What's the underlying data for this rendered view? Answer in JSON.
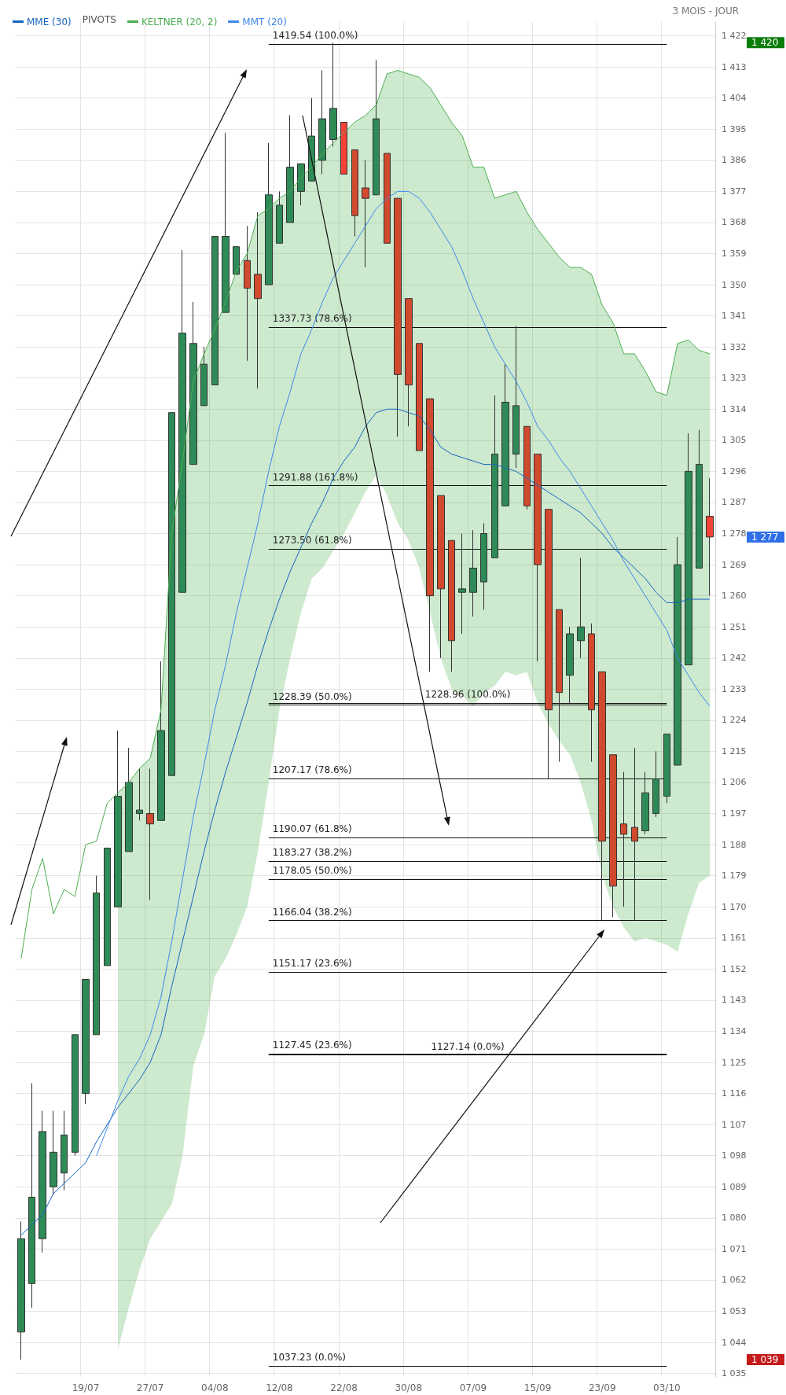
{
  "chart_data": {
    "type": "candlestick",
    "subtitle": "3 MOIS - JOUR",
    "categories": [
      null,
      null,
      null,
      null,
      null,
      null,
      "19/07",
      null,
      null,
      null,
      null,
      null,
      "27/07",
      null,
      null,
      null,
      null,
      null,
      "04/08",
      null,
      null,
      null,
      null,
      null,
      "12/08",
      null,
      null,
      null,
      null,
      null,
      "22/08",
      null,
      null,
      null,
      null,
      null,
      "30/08",
      null,
      null,
      null,
      null,
      null,
      "07/09",
      null,
      null,
      null,
      null,
      null,
      "15/09",
      null,
      null,
      null,
      null,
      null,
      "23/09",
      null,
      null,
      null,
      null,
      null,
      "03/10",
      null,
      null,
      null,
      null
    ],
    "ohlc": [
      [
        1047,
        1079,
        1039,
        1074
      ],
      [
        1061,
        1119,
        1054,
        1086
      ],
      [
        1074,
        1111,
        1070,
        1105
      ],
      [
        1089,
        1111,
        1087,
        1099
      ],
      [
        1093,
        1111,
        1088,
        1104
      ],
      [
        1099,
        1133,
        1098,
        1133
      ],
      [
        1116,
        1149,
        1113,
        1149
      ],
      [
        1133,
        1179,
        1133,
        1174
      ],
      [
        1153,
        1187,
        1153,
        1187
      ],
      [
        1170,
        1221,
        1170,
        1202
      ],
      [
        1186,
        1216,
        1186,
        1206
      ],
      [
        1197,
        1210,
        1195,
        1198
      ],
      [
        1197,
        1210,
        1172,
        1194
      ],
      [
        1195,
        1241,
        1195,
        1221
      ],
      [
        1208,
        1313,
        1208,
        1313
      ],
      [
        1261,
        1360,
        1261,
        1336
      ],
      [
        1298,
        1345,
        1298,
        1333
      ],
      [
        1315,
        1332,
        1315,
        1327
      ],
      [
        1321,
        1364,
        1321,
        1364
      ],
      [
        1342,
        1394,
        1342,
        1364
      ],
      [
        1353,
        1361,
        1353,
        1361
      ],
      [
        1357,
        1367,
        1328,
        1349
      ],
      [
        1353,
        1371,
        1320,
        1346
      ],
      [
        1350,
        1391,
        1350,
        1376
      ],
      [
        1362,
        1377,
        1362,
        1373
      ],
      [
        1368,
        1399,
        1368,
        1384
      ],
      [
        1377,
        1385,
        1373,
        1385
      ],
      [
        1380,
        1404,
        1380,
        1393
      ],
      [
        1386,
        1412,
        1382,
        1398
      ],
      [
        1392,
        1420,
        1390,
        1401
      ],
      [
        1397,
        1397,
        1382,
        1382
      ],
      [
        1389,
        1389,
        1364,
        1370
      ],
      [
        1378,
        1386,
        1355,
        1375
      ],
      [
        1376,
        1415,
        1376,
        1398
      ],
      [
        1388,
        1388,
        1362,
        1362
      ],
      [
        1375,
        1375,
        1306,
        1324
      ],
      [
        1346,
        1346,
        1309,
        1321
      ],
      [
        1333,
        1333,
        1302,
        1302
      ],
      [
        1317,
        1317,
        1238,
        1260
      ],
      [
        1289,
        1289,
        1242,
        1262
      ],
      [
        1276,
        1276,
        1238,
        1247
      ],
      [
        1261,
        1278,
        1249,
        1262
      ],
      [
        1261,
        1279,
        1254,
        1268
      ],
      [
        1264,
        1281,
        1256,
        1278
      ],
      [
        1271,
        1318,
        1271,
        1301
      ],
      [
        1286,
        1327,
        1286,
        1316
      ],
      [
        1301,
        1338,
        1297,
        1315
      ],
      [
        1309,
        1309,
        1285,
        1286
      ],
      [
        1301,
        1301,
        1241,
        1269
      ],
      [
        1285,
        1285,
        1207,
        1227
      ],
      [
        1256,
        1256,
        1212,
        1232
      ],
      [
        1237,
        1251,
        1229,
        1249
      ],
      [
        1247,
        1271,
        1242,
        1251
      ],
      [
        1249,
        1252,
        1212,
        1227
      ],
      [
        1238,
        1238,
        1166,
        1189
      ],
      [
        1214,
        1214,
        1167,
        1176
      ],
      [
        1194,
        1209,
        1170,
        1191
      ],
      [
        1193,
        1216,
        1166,
        1189
      ],
      [
        1192,
        1209,
        1191,
        1203
      ],
      [
        1197,
        1215,
        1196,
        1207
      ],
      [
        1202,
        1220,
        1200,
        1220
      ],
      [
        1211,
        1277,
        1211,
        1269
      ],
      [
        1240,
        1307,
        1240,
        1296
      ],
      [
        1268,
        1308,
        1268,
        1298
      ],
      [
        1283,
        1294,
        1260,
        1277
      ]
    ],
    "colors": [
      "#2e8b57",
      "#2e8b57",
      "#2e8b57",
      "#2e8b57",
      "#2e8b57",
      "#2e8b57",
      "#2e8b57",
      "#2e8b57",
      "#2e8b57",
      "#2e8b57",
      "#2e8b57",
      "#2e8b57",
      "#d24a2e",
      "#2e8b57",
      "#2e8b57",
      "#2e8b57",
      "#2e8b57",
      "#2e8b57",
      "#2e8b57",
      "#2e8b57",
      "#2e8b57",
      "#d24a2e",
      "#d24a2e",
      "#2e8b57",
      "#2e8b57",
      "#2e8b57",
      "#2e8b57",
      "#2e8b57",
      "#2e8b57",
      "#2e8b57",
      "#f44336",
      "#d24a2e",
      "#d24a2e",
      "#2e8b57",
      "#d24a2e",
      "#d24a2e",
      "#d24a2e",
      "#d24a2e",
      "#d24a2e",
      "#d24a2e",
      "#d24a2e",
      "#2e8b57",
      "#2e8b57",
      "#2e8b57",
      "#2e8b57",
      "#2e8b57",
      "#2e8b57",
      "#d24a2e",
      "#d24a2e",
      "#d24a2e",
      "#d24a2e",
      "#2e8b57",
      "#2e8b57",
      "#d24a2e",
      "#d24a2e",
      "#d24a2e",
      "#d24a2e",
      "#d24a2e",
      "#2e8b57",
      "#2e8b57",
      "#2e8b57",
      "#2e8b57",
      "#2e8b57",
      "#2e8b57",
      "#f44336"
    ],
    "series": [
      {
        "name": "MME (30)",
        "type": "line",
        "color": "#1565c0",
        "values": [
          1075,
          1078,
          1081,
          1087,
          1090,
          1093,
          1096,
          1102,
          1107,
          1112,
          1116,
          1120,
          1125,
          1133,
          1147,
          1160,
          1173,
          1186,
          1198,
          1209,
          1219,
          1229,
          1240,
          1250,
          1259,
          1267,
          1274,
          1281,
          1287,
          1294,
          1299,
          1303,
          1309,
          1313,
          1314,
          1314,
          1313,
          1312,
          1308,
          1303,
          1301,
          1300,
          1299,
          1298,
          1298,
          1297,
          1296,
          1294,
          1292,
          1290,
          1288,
          1286,
          1284,
          1281,
          1278,
          1274,
          1271,
          1268,
          1265,
          1261,
          1258,
          1258,
          1259,
          1259,
          1259
        ]
      },
      {
        "name": "KELTNER (20, 2)",
        "type": "line",
        "color": "#4caf50",
        "values": [
          1155,
          1175,
          1184,
          1168,
          1175,
          1173,
          1188,
          1189,
          1200,
          1203,
          1206,
          1210,
          1213,
          1227,
          1278,
          1299,
          1322,
          1330,
          1337,
          1345,
          1354,
          1359,
          1370,
          1372,
          1375,
          1377,
          1381,
          1384,
          1388,
          1391,
          1394,
          1397,
          1399,
          1402,
          1411,
          1412,
          1411,
          1410,
          1407,
          1402,
          1397,
          1393,
          1384,
          1384,
          1375,
          1376,
          1377,
          1371,
          1366,
          1362,
          1358,
          1355,
          1355,
          1353,
          1344,
          1339,
          1330,
          1330,
          1325,
          1319,
          1318,
          1333,
          1334,
          1331,
          1330
        ],
        "upper": [
          null,
          null,
          null,
          null,
          null,
          null,
          null,
          null,
          null,
          1203,
          1206,
          1210,
          1213,
          1227,
          1278,
          1299,
          1322,
          1330,
          1337,
          1345,
          1354,
          1359,
          1370,
          1372,
          1375,
          1377,
          1381,
          1384,
          1388,
          1391,
          1394,
          1397,
          1399,
          1402,
          1411,
          1412,
          1411,
          1410,
          1407,
          1402,
          1397,
          1393,
          1384,
          1384,
          1375,
          1376,
          1377,
          1371,
          1366,
          1362,
          1358,
          1355,
          1355,
          1353,
          1344,
          1339,
          1330,
          1330,
          1325,
          1319,
          1318,
          1333,
          1334,
          1331,
          1330
        ],
        "lower": [
          null,
          null,
          null,
          null,
          null,
          null,
          null,
          null,
          null,
          1042,
          1054,
          1065,
          1074,
          1079,
          1084,
          1098,
          1124,
          1133,
          1150,
          1155,
          1162,
          1170,
          1186,
          1206,
          1227,
          1242,
          1255,
          1265,
          1268,
          1273,
          1278,
          1284,
          1290,
          1295,
          1289,
          1281,
          1276,
          1268,
          1255,
          1242,
          1233,
          1231,
          1228,
          1232,
          1234,
          1238,
          1237,
          1238,
          1229,
          1223,
          1218,
          1214,
          1206,
          1195,
          1179,
          1170,
          1164,
          1160,
          1161,
          1160,
          1159,
          1157,
          1168,
          1177,
          1179
        ]
      },
      {
        "name": "MMT (20)",
        "type": "line",
        "color": "#3f88ee",
        "values": [
          null,
          null,
          null,
          null,
          null,
          null,
          null,
          1098,
          1106,
          1114,
          1121,
          1126,
          1133,
          1144,
          1160,
          1178,
          1196,
          1211,
          1227,
          1240,
          1255,
          1268,
          1281,
          1296,
          1309,
          1319,
          1330,
          1337,
          1345,
          1352,
          1357,
          1362,
          1367,
          1372,
          1375,
          1377,
          1377,
          1375,
          1371,
          1366,
          1361,
          1354,
          1346,
          1339,
          1332,
          1327,
          1322,
          1316,
          1309,
          1305,
          1300,
          1296,
          1291,
          1286,
          1281,
          1276,
          1270,
          1265,
          1260,
          1255,
          1250,
          1242,
          1237,
          1232,
          1228
        ]
      }
    ],
    "ylim": [
      1034,
      1426
    ],
    "yticks": [
      {
        "value": 1035,
        "label": "1 035"
      },
      {
        "value": 1044,
        "label": "1 044"
      },
      {
        "value": 1053,
        "label": "1 053"
      },
      {
        "value": 1062,
        "label": "1 062"
      },
      {
        "value": 1071,
        "label": "1 071"
      },
      {
        "value": 1080,
        "label": "1 080"
      },
      {
        "value": 1089,
        "label": "1 089"
      },
      {
        "value": 1098,
        "label": "1 098"
      },
      {
        "value": 1107,
        "label": "1 107"
      },
      {
        "value": 1116,
        "label": "1 116"
      },
      {
        "value": 1125,
        "label": "1 125"
      },
      {
        "value": 1134,
        "label": "1 134"
      },
      {
        "value": 1143,
        "label": "1 143"
      },
      {
        "value": 1152,
        "label": "1 152"
      },
      {
        "value": 1161,
        "label": "1 161"
      },
      {
        "value": 1170,
        "label": "1 170"
      },
      {
        "value": 1179,
        "label": "1 179"
      },
      {
        "value": 1188,
        "label": "1 188"
      },
      {
        "value": 1197,
        "label": "1 197"
      },
      {
        "value": 1206,
        "label": "1 206"
      },
      {
        "value": 1215,
        "label": "1 215"
      },
      {
        "value": 1224,
        "label": "1 224"
      },
      {
        "value": 1233,
        "label": "1 233"
      },
      {
        "value": 1242,
        "label": "1 242"
      },
      {
        "value": 1251,
        "label": "1 251"
      },
      {
        "value": 1260,
        "label": "1 260"
      },
      {
        "value": 1269,
        "label": "1 269"
      },
      {
        "value": 1278,
        "label": "1 278"
      },
      {
        "value": 1287,
        "label": "1 287"
      },
      {
        "value": 1296,
        "label": "1 296"
      },
      {
        "value": 1305,
        "label": "1 305"
      },
      {
        "value": 1314,
        "label": "1 314"
      },
      {
        "value": 1323,
        "label": "1 323"
      },
      {
        "value": 1332,
        "label": "1 332"
      },
      {
        "value": 1341,
        "label": "1 341"
      },
      {
        "value": 1350,
        "label": "1 350"
      },
      {
        "value": 1359,
        "label": "1 359"
      },
      {
        "value": 1368,
        "label": "1 368"
      },
      {
        "value": 1377,
        "label": "1 377"
      },
      {
        "value": 1386,
        "label": "1 386"
      },
      {
        "value": 1395,
        "label": "1 395"
      },
      {
        "value": 1404,
        "label": "1 404"
      },
      {
        "value": 1413,
        "label": "1 413"
      },
      {
        "value": 1422,
        "label": "1 422"
      }
    ],
    "grid": true,
    "legend": "top left",
    "marker": "none",
    "ref_lines": [
      {
        "axis": "y",
        "value": 1419.54,
        "label": "1419.54 (100.0%)"
      },
      {
        "axis": "y",
        "value": 1337.73,
        "label": "1337.73 (78.6%)"
      },
      {
        "axis": "y",
        "value": 1273.5,
        "label": "1273.50 (61.8%)"
      },
      {
        "axis": "y",
        "value": 1228.39,
        "label": "1228.39 (50.0%)"
      },
      {
        "axis": "y",
        "value": 1183.27,
        "label": "1183.27 (38.2%)"
      },
      {
        "axis": "y",
        "value": 1127.45,
        "label": "1127.45 (23.6%)"
      },
      {
        "axis": "y",
        "value": 1037.23,
        "label": "1037.23 (0.0%)"
      },
      {
        "axis": "y",
        "value": 1291.88,
        "label": "1291.88 (161.8%)"
      },
      {
        "axis": "y",
        "value": 1228.96,
        "label": "1228.96 (100.0%)"
      },
      {
        "axis": "y",
        "value": 1207.17,
        "label": "1207.17 (78.6%)"
      },
      {
        "axis": "y",
        "value": 1190.07,
        "label": "1190.07 (61.8%)"
      },
      {
        "axis": "y",
        "value": 1178.05,
        "label": "1178.05 (50.0%)"
      },
      {
        "axis": "y",
        "value": 1166.04,
        "label": "1166.04 (38.2%)"
      },
      {
        "axis": "y",
        "value": 1151.17,
        "label": "1151.17 (23.6%)"
      },
      {
        "axis": "y",
        "value": 1127.14,
        "label": "1127.14 (0.0%)"
      }
    ],
    "annotations": [
      "PIVOTS",
      "1 420",
      "1 277",
      "1 039"
    ]
  }
}
